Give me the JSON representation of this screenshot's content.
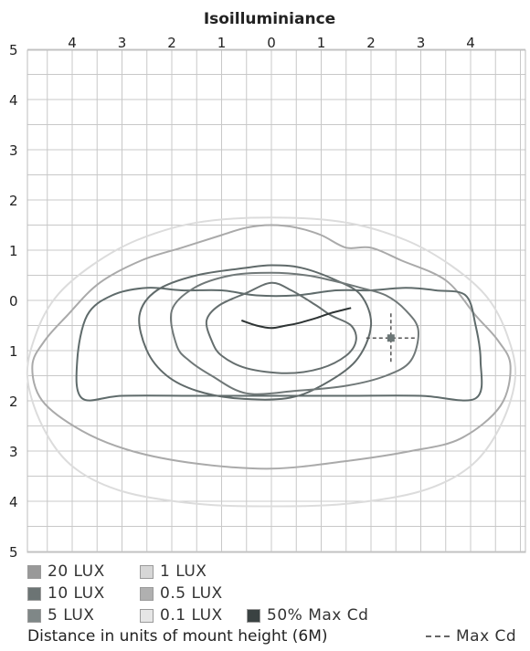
{
  "chart_data": {
    "type": "line",
    "title": "Isoilluminiance",
    "xlabel": "",
    "ylabel": "",
    "xlim": [
      -5,
      5
    ],
    "ylim": [
      -5,
      5
    ],
    "x_ticks": [
      {
        "value": -4,
        "label": "4"
      },
      {
        "value": -3,
        "label": "3"
      },
      {
        "value": -2,
        "label": "2"
      },
      {
        "value": -1,
        "label": "1"
      },
      {
        "value": 0,
        "label": "0"
      },
      {
        "value": 1,
        "label": "1"
      },
      {
        "value": 2,
        "label": "2"
      },
      {
        "value": 3,
        "label": "3"
      },
      {
        "value": 4,
        "label": "4"
      }
    ],
    "y_ticks": [
      {
        "value": 5,
        "label": "5"
      },
      {
        "value": 4,
        "label": "4"
      },
      {
        "value": 3,
        "label": "3"
      },
      {
        "value": 2,
        "label": "2"
      },
      {
        "value": 1,
        "label": "1"
      },
      {
        "value": 0,
        "label": "0"
      },
      {
        "value": -1,
        "label": "1"
      },
      {
        "value": -2,
        "label": "2"
      },
      {
        "value": -3,
        "label": "3"
      },
      {
        "value": -4,
        "label": "4"
      },
      {
        "value": -5,
        "label": "5"
      }
    ],
    "grid": true,
    "series": [
      {
        "name": "0.1 LUX",
        "color": "#dcdcdc",
        "points": [
          [
            -4.9,
            -1.5
          ],
          [
            -4.7,
            -0.6
          ],
          [
            -4.3,
            0.1
          ],
          [
            -3.6,
            0.7
          ],
          [
            -2.7,
            1.2
          ],
          [
            -1.5,
            1.55
          ],
          [
            0,
            1.65
          ],
          [
            1.5,
            1.55
          ],
          [
            2.7,
            1.2
          ],
          [
            3.6,
            0.7
          ],
          [
            4.3,
            0.1
          ],
          [
            4.7,
            -0.6
          ],
          [
            4.9,
            -1.5
          ],
          [
            4.6,
            -2.5
          ],
          [
            4.0,
            -3.3
          ],
          [
            3.0,
            -3.8
          ],
          [
            1.5,
            -4.05
          ],
          [
            0,
            -4.1
          ],
          [
            -1.5,
            -4.05
          ],
          [
            -3.0,
            -3.8
          ],
          [
            -4.0,
            -3.3
          ],
          [
            -4.6,
            -2.5
          ]
        ]
      },
      {
        "name": "0.5 LUX",
        "color": "#aaaaaa",
        "points": [
          [
            -4.8,
            -1.3
          ],
          [
            -4.55,
            -0.8
          ],
          [
            -4.1,
            -0.3
          ],
          [
            -3.45,
            0.35
          ],
          [
            -2.6,
            0.8
          ],
          [
            -1.8,
            1.05
          ],
          [
            -1.0,
            1.3
          ],
          [
            -0.5,
            1.45
          ],
          [
            0,
            1.5
          ],
          [
            0.5,
            1.45
          ],
          [
            1.0,
            1.3
          ],
          [
            1.5,
            1.05
          ],
          [
            2.0,
            1.05
          ],
          [
            2.6,
            0.8
          ],
          [
            3.5,
            0.4
          ],
          [
            4.1,
            -0.3
          ],
          [
            4.55,
            -0.8
          ],
          [
            4.8,
            -1.3
          ],
          [
            4.6,
            -2.1
          ],
          [
            3.8,
            -2.75
          ],
          [
            2.8,
            -3.0
          ],
          [
            1.5,
            -3.2
          ],
          [
            0,
            -3.35
          ],
          [
            -1.5,
            -3.25
          ],
          [
            -2.8,
            -3.0
          ],
          [
            -3.8,
            -2.6
          ],
          [
            -4.6,
            -2.0
          ]
        ]
      },
      {
        "name": "1 LUX",
        "color": "#5f6b6b",
        "points": [
          [
            -3.8,
            -1.95
          ],
          [
            -3.9,
            -1.2
          ],
          [
            -3.7,
            -0.3
          ],
          [
            -3.2,
            0.1
          ],
          [
            -2.5,
            0.25
          ],
          [
            -1.8,
            0.2
          ],
          [
            -1.0,
            0.2
          ],
          [
            -0.3,
            0.1
          ],
          [
            0.5,
            0.1
          ],
          [
            1.3,
            0.2
          ],
          [
            2.0,
            0.2
          ],
          [
            2.7,
            0.25
          ],
          [
            3.3,
            0.2
          ],
          [
            3.9,
            0.1
          ],
          [
            4.1,
            -0.5
          ],
          [
            4.2,
            -1.2
          ],
          [
            4.1,
            -1.95
          ],
          [
            3.0,
            -1.9
          ],
          [
            1.5,
            -1.9
          ],
          [
            0,
            -1.9
          ],
          [
            -1.5,
            -1.9
          ],
          [
            -3.0,
            -1.9
          ]
        ]
      },
      {
        "name": "5 LUX",
        "color": "#606a6a",
        "points": [
          [
            -2.5,
            -1.0
          ],
          [
            -2.65,
            -0.3
          ],
          [
            -2.3,
            0.2
          ],
          [
            -1.5,
            0.5
          ],
          [
            -0.5,
            0.65
          ],
          [
            0,
            0.7
          ],
          [
            0.6,
            0.65
          ],
          [
            1.3,
            0.4
          ],
          [
            1.8,
            0.1
          ],
          [
            2.0,
            -0.5
          ],
          [
            1.7,
            -1.2
          ],
          [
            1.0,
            -1.7
          ],
          [
            0.3,
            -1.95
          ],
          [
            -0.7,
            -1.95
          ],
          [
            -1.5,
            -1.8
          ],
          [
            -2.1,
            -1.5
          ]
        ]
      },
      {
        "name": "10 LUX",
        "color": "#707878",
        "points": [
          [
            -1.9,
            -0.9
          ],
          [
            -2.0,
            -0.2
          ],
          [
            -1.55,
            0.25
          ],
          [
            -0.8,
            0.5
          ],
          [
            0,
            0.55
          ],
          [
            0.7,
            0.5
          ],
          [
            1.2,
            0.4
          ],
          [
            1.8,
            0.25
          ],
          [
            2.3,
            0.1
          ],
          [
            2.7,
            -0.2
          ],
          [
            2.95,
            -0.6
          ],
          [
            2.8,
            -1.2
          ],
          [
            2.3,
            -1.5
          ],
          [
            1.5,
            -1.7
          ],
          [
            0.5,
            -1.8
          ],
          [
            -0.5,
            -1.85
          ],
          [
            -1.2,
            -1.5
          ],
          [
            -1.65,
            -1.2
          ]
        ]
      },
      {
        "name": "20 LUX",
        "color": "#656e6e",
        "points": [
          [
            -1.2,
            -0.8
          ],
          [
            -1.3,
            -0.4
          ],
          [
            -1.05,
            -0.1
          ],
          [
            -0.5,
            0.15
          ],
          [
            0,
            0.35
          ],
          [
            0.4,
            0.2
          ],
          [
            0.9,
            -0.1
          ],
          [
            1.2,
            -0.3
          ],
          [
            1.6,
            -0.5
          ],
          [
            1.7,
            -0.8
          ],
          [
            1.5,
            -1.1
          ],
          [
            1.0,
            -1.35
          ],
          [
            0.3,
            -1.45
          ],
          [
            -0.5,
            -1.35
          ],
          [
            -1.0,
            -1.1
          ]
        ]
      },
      {
        "name": "50% Max Cd",
        "color": "#2e3434",
        "points": [
          [
            -0.6,
            -0.4
          ],
          [
            -0.3,
            -0.5
          ],
          [
            0,
            -0.55
          ],
          [
            0.3,
            -0.5
          ],
          [
            0.55,
            -0.45
          ],
          [
            0.9,
            -0.35
          ],
          [
            1.2,
            -0.25
          ],
          [
            1.6,
            -0.15
          ]
        ]
      }
    ],
    "max_cd": {
      "x": 2.4,
      "y": -0.75,
      "label": "Max Cd"
    },
    "legend": {
      "position": "bottom-left",
      "entries": [
        {
          "label": "20 LUX",
          "color": "#999999"
        },
        {
          "label": "10 LUX",
          "color": "#6c7474"
        },
        {
          "label": "5 LUX",
          "color": "#7f8787"
        },
        {
          "label": "1 LUX",
          "color": "#d7d7d7"
        },
        {
          "label": "0.5 LUX",
          "color": "#b0b0b0"
        },
        {
          "label": "0.1 LUX",
          "color": "#e6e6e6"
        },
        {
          "label": "50% Max Cd",
          "color": "#3a4242"
        }
      ]
    },
    "footnote": "Distance in units of mount height (6M)"
  }
}
